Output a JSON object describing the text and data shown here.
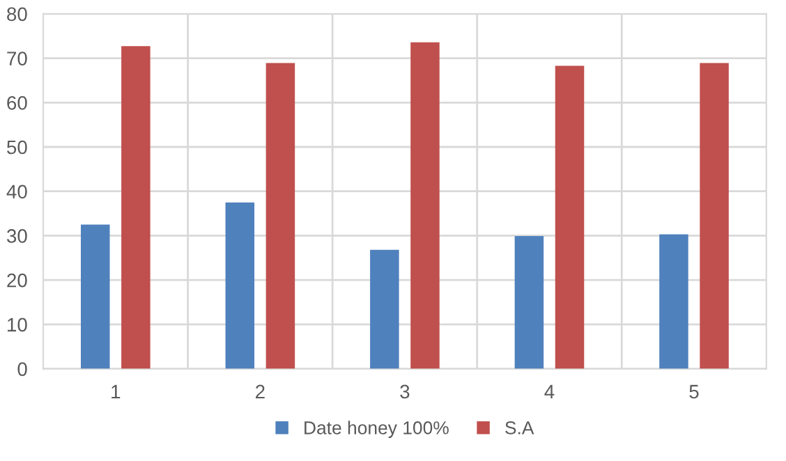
{
  "chart_data": {
    "type": "bar",
    "categories": [
      "1",
      "2",
      "3",
      "4",
      "5"
    ],
    "series": [
      {
        "name": "Date honey 100%",
        "color": "#4f81bd",
        "values": [
          32.5,
          37.5,
          26.8,
          29.9,
          30.3
        ]
      },
      {
        "name": "S.A",
        "color": "#c0504d",
        "values": [
          72.7,
          68.9,
          73.6,
          68.3,
          68.9
        ]
      }
    ],
    "ylim": [
      0,
      80
    ],
    "yticks": [
      0,
      10,
      20,
      30,
      40,
      50,
      60,
      70,
      80
    ],
    "grid": true,
    "legend": "bottom"
  }
}
